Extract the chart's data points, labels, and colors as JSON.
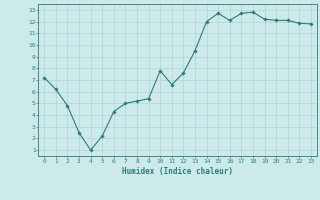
{
  "x": [
    0,
    1,
    2,
    3,
    4,
    5,
    6,
    7,
    8,
    9,
    10,
    11,
    12,
    13,
    14,
    15,
    16,
    17,
    18,
    19,
    20,
    21,
    22,
    23
  ],
  "y": [
    7.2,
    6.2,
    4.8,
    2.5,
    1.0,
    2.2,
    4.3,
    5.0,
    5.2,
    5.4,
    7.8,
    6.6,
    7.6,
    9.5,
    12.0,
    12.7,
    12.1,
    12.7,
    12.8,
    12.2,
    12.1,
    12.1,
    11.85,
    11.8
  ],
  "line_color": "#2e7d72",
  "marker": "D",
  "marker_size": 1.8,
  "linewidth": 0.8,
  "xlabel": "Humidex (Indice chaleur)",
  "xlim": [
    -0.5,
    23.5
  ],
  "ylim": [
    0.5,
    13.5
  ],
  "yticks": [
    1,
    2,
    3,
    4,
    5,
    6,
    7,
    8,
    9,
    10,
    11,
    12,
    13
  ],
  "xticks": [
    0,
    1,
    2,
    3,
    4,
    5,
    6,
    7,
    8,
    9,
    10,
    11,
    12,
    13,
    14,
    15,
    16,
    17,
    18,
    19,
    20,
    21,
    22,
    23
  ],
  "bg_color": "#cdeaea",
  "grid_color": "#b0d4d4",
  "tick_color": "#2e7d72",
  "label_color": "#2e7d72",
  "tick_fontsize": 4.5,
  "xlabel_fontsize": 5.5
}
